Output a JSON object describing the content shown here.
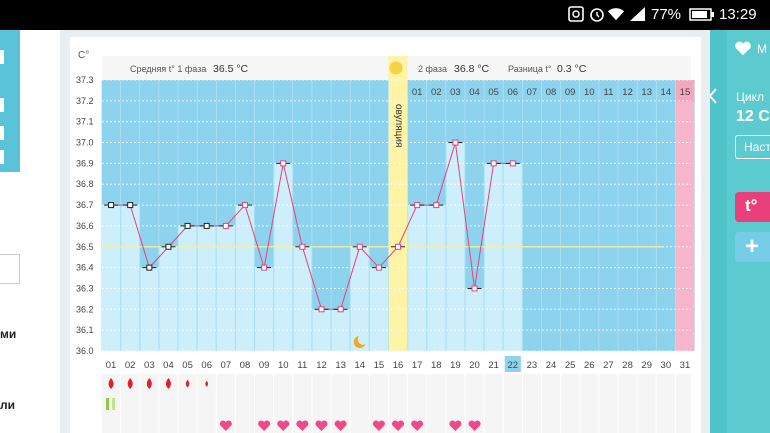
{
  "status_bar": {
    "battery": "77%",
    "time": "13:29"
  },
  "left_partial": {
    "label_1": "ми",
    "label_2": "ли"
  },
  "chart_header": {
    "unit": "C°",
    "phase1_label": "Средняя t° 1 фаза",
    "phase1_value": "36.5 °C",
    "ovulation_label": "овуляция",
    "phase2_label": "2 фаза",
    "phase2_value": "36.8 °C",
    "diff_label": "Разница t°",
    "diff_value": "0.3 °C"
  },
  "right_panel": {
    "partial_label": "М",
    "cycle_label": "Цикл",
    "cycle_value": "12 С",
    "settings_button": "Наст",
    "temp_button": "t°",
    "add_button": "+"
  },
  "colors": {
    "chart_bg": "#8ed3ee",
    "column_fill": "#cdeefb",
    "ovulation": "#fff3a6",
    "period_end": "#f6b5cb",
    "line": "#e8407a",
    "average_line": "#f2ef9a",
    "accent": "#4fc3c8"
  },
  "chart_data": {
    "type": "line",
    "ylabel": "C°",
    "ylim": [
      36.0,
      37.3
    ],
    "y_ticks": [
      "37.3",
      "37.2",
      "37.1",
      "37.0",
      "36.9",
      "36.8",
      "36.7",
      "36.6",
      "36.5",
      "36.4",
      "36.3",
      "36.2",
      "36.1",
      "36.0"
    ],
    "phase1_average": 36.5,
    "ovulation_day": "16",
    "today": "22",
    "days": [
      "01",
      "02",
      "03",
      "04",
      "05",
      "06",
      "07",
      "08",
      "09",
      "10",
      "11",
      "12",
      "13",
      "14",
      "15",
      "16",
      "17",
      "18",
      "19",
      "20",
      "21",
      "22",
      "23",
      "24",
      "25",
      "26",
      "27",
      "28",
      "29",
      "30",
      "31"
    ],
    "cycle_days_row": [
      "01",
      "02",
      "03",
      "04",
      "05",
      "06",
      "07",
      "08",
      "09",
      "10",
      "11",
      "12",
      "13",
      "14",
      "15"
    ],
    "series": [
      {
        "values": [
          36.7,
          36.7,
          36.4,
          36.5,
          36.6,
          36.6,
          36.6,
          36.7,
          36.4,
          36.9,
          36.5,
          36.2,
          36.2,
          36.5,
          36.4,
          36.5,
          36.7,
          36.7,
          37.0,
          36.3,
          36.9,
          36.9
        ]
      }
    ],
    "markers": {
      "bleeding_days": [
        "01",
        "02",
        "03",
        "04",
        "05",
        "06"
      ],
      "pill_days": [
        "01"
      ],
      "heart_days": [
        "07",
        "09",
        "10",
        "11",
        "12",
        "13",
        "15",
        "16",
        "17",
        "19",
        "20"
      ],
      "moon_days": [
        "14"
      ]
    }
  }
}
